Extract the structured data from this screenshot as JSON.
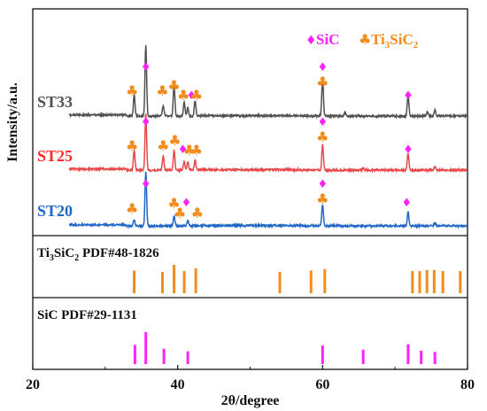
{
  "chart_data": {
    "type": "line",
    "xlabel": "2θ/degree",
    "ylabel": "Intensity/a.u.",
    "xlim": [
      20,
      80
    ],
    "xticks": [
      "20",
      "40",
      "60",
      "80"
    ],
    "legend": {
      "placement": "top-right",
      "items": [
        {
          "symbol": "♦",
          "text": "SiC",
          "color": "#ff22ff"
        },
        {
          "symbol": "♣",
          "text_main": "Ti",
          "sub1": "3",
          "mid": "SiC",
          "sub2": "2",
          "color": "#f28c1c"
        }
      ]
    },
    "series": [
      {
        "name": "ST33",
        "color": "#505050",
        "label_color": "#505050",
        "peaks": [
          {
            "x": 34.0,
            "h": 0.3
          },
          {
            "x": 35.6,
            "h": 1.0
          },
          {
            "x": 38.0,
            "h": 0.15
          },
          {
            "x": 39.5,
            "h": 0.45
          },
          {
            "x": 40.9,
            "h": 0.2
          },
          {
            "x": 41.4,
            "h": 0.12
          },
          {
            "x": 42.4,
            "h": 0.22
          },
          {
            "x": 60.0,
            "h": 0.55
          },
          {
            "x": 63.1,
            "h": 0.05
          },
          {
            "x": 71.8,
            "h": 0.3
          },
          {
            "x": 74.5,
            "h": 0.06
          },
          {
            "x": 75.5,
            "h": 0.08
          }
        ],
        "markers": [
          {
            "x": 33.7,
            "sym": "club"
          },
          {
            "x": 35.6,
            "sym": "diamond"
          },
          {
            "x": 37.9,
            "sym": "club"
          },
          {
            "x": 39.5,
            "sym": "club"
          },
          {
            "x": 40.8,
            "sym": "club"
          },
          {
            "x": 41.9,
            "sym": "diamond"
          },
          {
            "x": 42.6,
            "sym": "club"
          },
          {
            "x": 60.0,
            "sym": "diamond"
          },
          {
            "x": 60.0,
            "sym": "club"
          },
          {
            "x": 71.8,
            "sym": "diamond"
          }
        ]
      },
      {
        "name": "ST25",
        "color": "#e8474a",
        "label_color": "#ff2b2b",
        "peaks": [
          {
            "x": 34.0,
            "h": 0.35
          },
          {
            "x": 35.6,
            "h": 1.0
          },
          {
            "x": 38.0,
            "h": 0.25
          },
          {
            "x": 39.5,
            "h": 0.35
          },
          {
            "x": 40.9,
            "h": 0.15
          },
          {
            "x": 41.4,
            "h": 0.15
          },
          {
            "x": 42.4,
            "h": 0.18
          },
          {
            "x": 60.0,
            "h": 0.45
          },
          {
            "x": 65.6,
            "h": 0.04
          },
          {
            "x": 71.8,
            "h": 0.3
          },
          {
            "x": 75.5,
            "h": 0.06
          }
        ],
        "markers": [
          {
            "x": 33.7,
            "sym": "club"
          },
          {
            "x": 35.6,
            "sym": "diamond"
          },
          {
            "x": 38.0,
            "sym": "club"
          },
          {
            "x": 39.6,
            "sym": "club"
          },
          {
            "x": 40.7,
            "sym": "diamond"
          },
          {
            "x": 41.6,
            "sym": "club"
          },
          {
            "x": 42.6,
            "sym": "club"
          },
          {
            "x": 60.0,
            "sym": "diamond"
          },
          {
            "x": 60.0,
            "sym": "club"
          },
          {
            "x": 71.8,
            "sym": "diamond"
          }
        ]
      },
      {
        "name": "ST20",
        "color": "#1e66c8",
        "label_color": "#1e66c8",
        "peaks": [
          {
            "x": 34.0,
            "h": 0.12
          },
          {
            "x": 35.6,
            "h": 1.0
          },
          {
            "x": 39.5,
            "h": 0.18
          },
          {
            "x": 41.4,
            "h": 0.1
          },
          {
            "x": 60.0,
            "h": 0.38
          },
          {
            "x": 71.8,
            "h": 0.25
          },
          {
            "x": 75.5,
            "h": 0.05
          }
        ],
        "markers": [
          {
            "x": 33.7,
            "sym": "club"
          },
          {
            "x": 35.6,
            "sym": "diamond"
          },
          {
            "x": 39.5,
            "sym": "club"
          },
          {
            "x": 40.3,
            "sym": "club"
          },
          {
            "x": 41.2,
            "sym": "diamond"
          },
          {
            "x": 42.7,
            "sym": "club"
          },
          {
            "x": 60.0,
            "sym": "diamond"
          },
          {
            "x": 60.0,
            "sym": "club"
          },
          {
            "x": 71.6,
            "sym": "diamond"
          }
        ]
      }
    ],
    "reference_panels": [
      {
        "label_main": "Ti",
        "label_sub1": "3",
        "label_mid": "SiC",
        "label_sub2": "2",
        "label_rest": " PDF#48-1826",
        "color": "#f28c1c",
        "lines": [
          {
            "x": 34.0,
            "h": 0.8
          },
          {
            "x": 37.9,
            "h": 0.75
          },
          {
            "x": 39.5,
            "h": 1.0
          },
          {
            "x": 40.9,
            "h": 0.78
          },
          {
            "x": 42.5,
            "h": 0.88
          },
          {
            "x": 54.1,
            "h": 0.75
          },
          {
            "x": 58.4,
            "h": 0.8
          },
          {
            "x": 60.3,
            "h": 0.85
          },
          {
            "x": 72.4,
            "h": 0.78
          },
          {
            "x": 73.4,
            "h": 0.78
          },
          {
            "x": 74.4,
            "h": 0.82
          },
          {
            "x": 75.4,
            "h": 0.82
          },
          {
            "x": 76.6,
            "h": 0.78
          },
          {
            "x": 79.0,
            "h": 0.78
          }
        ]
      },
      {
        "label_main": "SiC PDF#29-1131",
        "label_sub1": "",
        "label_mid": "",
        "label_sub2": "",
        "label_rest": "",
        "color": "#ff22ff",
        "lines": [
          {
            "x": 34.1,
            "h": 0.6
          },
          {
            "x": 35.6,
            "h": 1.0
          },
          {
            "x": 38.1,
            "h": 0.48
          },
          {
            "x": 41.4,
            "h": 0.4
          },
          {
            "x": 60.0,
            "h": 0.58
          },
          {
            "x": 65.6,
            "h": 0.45
          },
          {
            "x": 71.8,
            "h": 0.62
          },
          {
            "x": 73.6,
            "h": 0.42
          },
          {
            "x": 75.5,
            "h": 0.38
          }
        ]
      }
    ]
  }
}
